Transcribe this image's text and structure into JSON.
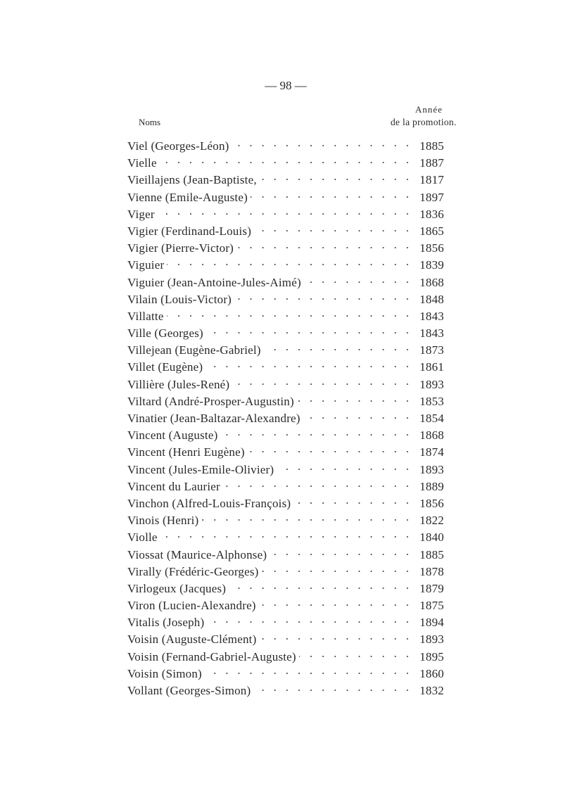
{
  "page_number": "— 98 —",
  "headers": {
    "names": "Noms",
    "year_line1": "Année",
    "year_line2": "de la promotion."
  },
  "entries": [
    {
      "name": "Viel (Georges-Léon)",
      "year": "1885"
    },
    {
      "name": "Vielle",
      "year": "1887"
    },
    {
      "name": "Vieillajens (Jean-Baptiste,",
      "year": "1817"
    },
    {
      "name": "Vienne (Emile-Auguste)",
      "year": "1897"
    },
    {
      "name": "Viger",
      "year": "1836"
    },
    {
      "name": "Vigier (Ferdinand-Louis)",
      "year": "1865"
    },
    {
      "name": "Vigier (Pierre-Victor)",
      "year": "1856"
    },
    {
      "name": "Viguier",
      "year": "1839"
    },
    {
      "name": "Viguier (Jean-Antoine-Jules-Aimé)",
      "year": "1868"
    },
    {
      "name": "Vilain (Louis-Victor)",
      "year": "1848"
    },
    {
      "name": "Villatte",
      "year": "1843"
    },
    {
      "name": "Ville (Georges)",
      "year": "1843"
    },
    {
      "name": "Villejean (Eugène-Gabriel)",
      "year": "1873"
    },
    {
      "name": "Villet (Eugène)",
      "year": "1861"
    },
    {
      "name": "Villière (Jules-René)",
      "year": "1893"
    },
    {
      "name": "Viltard (André-Prosper-Augustin)",
      "year": "1853"
    },
    {
      "name": "Vinatier (Jean-Baltazar-Alexandre)",
      "year": "1854"
    },
    {
      "name": "Vincent (Auguste)",
      "year": "1868"
    },
    {
      "name": "Vincent (Henri Eugène)",
      "year": "1874"
    },
    {
      "name": "Vincent (Jules-Emile-Olivier)",
      "year": "1893"
    },
    {
      "name": "Vincent du Laurier",
      "year": "1889"
    },
    {
      "name": "Vinchon (Alfred-Louis-François)",
      "year": "1856"
    },
    {
      "name": "Vinois (Henri)",
      "year": "1822"
    },
    {
      "name": "Violle",
      "year": "1840"
    },
    {
      "name": "Viossat (Maurice-Alphonse)",
      "year": "1885"
    },
    {
      "name": "Virally (Frédéric-Georges)",
      "year": "1878"
    },
    {
      "name": "Virlogeux (Jacques)",
      "year": "1879"
    },
    {
      "name": "Viron (Lucien-Alexandre)",
      "year": "1875"
    },
    {
      "name": "Vitalis (Joseph)",
      "year": "1894"
    },
    {
      "name": "Voisin (Auguste-Clément)",
      "year": "1893"
    },
    {
      "name": "Voisin (Fernand-Gabriel-Auguste)",
      "year": "1895"
    },
    {
      "name": "Voisin (Simon)",
      "year": "1860"
    },
    {
      "name": "Vollant (Georges-Simon)",
      "year": "1832"
    }
  ]
}
